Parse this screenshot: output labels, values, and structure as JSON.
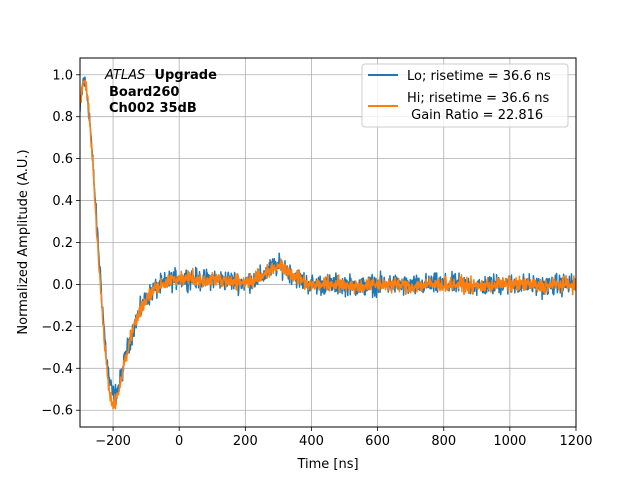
{
  "chart_data": {
    "type": "line",
    "title": "",
    "xlabel": "Time [ns]",
    "ylabel": "Normalized Amplitude (A.U.)",
    "xlim": [
      -300,
      1200
    ],
    "ylim": [
      -0.68,
      1.08
    ],
    "xticks": [
      -200,
      0,
      200,
      400,
      600,
      800,
      1000,
      1200
    ],
    "yticks": [
      -0.6,
      -0.4,
      -0.2,
      0.0,
      0.2,
      0.4,
      0.6,
      0.8,
      1.0
    ],
    "xtick_labels": [
      "−200",
      "0",
      "200",
      "400",
      "600",
      "800",
      "1000",
      "1200"
    ],
    "ytick_labels": [
      "−0.6",
      "−0.4",
      "−0.2",
      "0.0",
      "0.2",
      "0.4",
      "0.6",
      "0.8",
      "1.0"
    ],
    "grid": true,
    "legend_position": "top-right",
    "annotation": {
      "line1_italic": "ATLAS",
      "line1_bold": "Upgrade",
      "line2": "Board260",
      "line3": "Ch002 35dB"
    },
    "legend": {
      "line1": "Lo; risetime = 36.6 ns",
      "line2a": "Hi; risetime = 36.6 ns",
      "line2b": " Gain Ratio = 22.816"
    },
    "series": [
      {
        "name": "Lo; risetime = 36.6 ns",
        "color": "#1f77b4",
        "noise": 0.035,
        "x": [
          -300,
          -290,
          -280,
          -270,
          -260,
          -250,
          -240,
          -230,
          -220,
          -210,
          -200,
          -190,
          -180,
          -170,
          -160,
          -150,
          -140,
          -130,
          -120,
          -110,
          -100,
          -80,
          -60,
          -40,
          -20,
          0,
          20,
          40,
          60,
          80,
          100,
          120,
          150,
          180,
          200,
          220,
          240,
          260,
          280,
          300,
          320,
          340,
          360,
          380,
          400,
          450,
          500,
          550,
          600,
          650,
          700,
          750,
          800,
          850,
          900,
          950,
          1000,
          1050,
          1100,
          1150,
          1200
        ],
        "y": [
          0.82,
          0.98,
          0.93,
          0.78,
          0.55,
          0.3,
          0.08,
          -0.15,
          -0.35,
          -0.47,
          -0.53,
          -0.52,
          -0.47,
          -0.4,
          -0.33,
          -0.27,
          -0.22,
          -0.17,
          -0.13,
          -0.1,
          -0.07,
          -0.03,
          -0.01,
          0.01,
          0.02,
          0.03,
          0.03,
          0.03,
          0.02,
          0.02,
          0.03,
          0.02,
          0.02,
          0.01,
          0.01,
          0.02,
          0.03,
          0.05,
          0.08,
          0.09,
          0.08,
          0.05,
          0.03,
          0.01,
          0.0,
          0.0,
          0.0,
          -0.01,
          0.0,
          0.0,
          -0.01,
          0.0,
          0.0,
          0.0,
          -0.01,
          0.0,
          0.0,
          0.0,
          -0.01,
          0.0,
          0.0
        ]
      },
      {
        "name": "Hi; risetime = 36.6 ns",
        "color": "#ff7f0e",
        "noise": 0.025,
        "x": [
          -300,
          -290,
          -280,
          -270,
          -260,
          -250,
          -240,
          -230,
          -220,
          -210,
          -200,
          -190,
          -180,
          -170,
          -160,
          -150,
          -140,
          -130,
          -120,
          -110,
          -100,
          -80,
          -60,
          -40,
          -20,
          0,
          20,
          40,
          60,
          80,
          100,
          120,
          150,
          180,
          200,
          220,
          240,
          260,
          280,
          300,
          320,
          340,
          360,
          380,
          400,
          450,
          500,
          550,
          600,
          650,
          700,
          750,
          800,
          850,
          900,
          950,
          1000,
          1050,
          1100,
          1150,
          1200
        ],
        "y": [
          0.85,
          0.99,
          0.93,
          0.77,
          0.53,
          0.27,
          0.04,
          -0.19,
          -0.39,
          -0.52,
          -0.57,
          -0.55,
          -0.49,
          -0.41,
          -0.34,
          -0.28,
          -0.22,
          -0.17,
          -0.13,
          -0.1,
          -0.07,
          -0.03,
          -0.01,
          0.01,
          0.02,
          0.03,
          0.03,
          0.03,
          0.02,
          0.02,
          0.03,
          0.02,
          0.02,
          0.01,
          0.01,
          0.02,
          0.03,
          0.05,
          0.08,
          0.09,
          0.08,
          0.05,
          0.03,
          0.01,
          0.0,
          0.0,
          0.0,
          -0.01,
          0.0,
          0.0,
          -0.01,
          0.0,
          0.0,
          0.0,
          -0.01,
          0.0,
          0.0,
          0.0,
          -0.01,
          0.0,
          0.0
        ]
      }
    ]
  }
}
